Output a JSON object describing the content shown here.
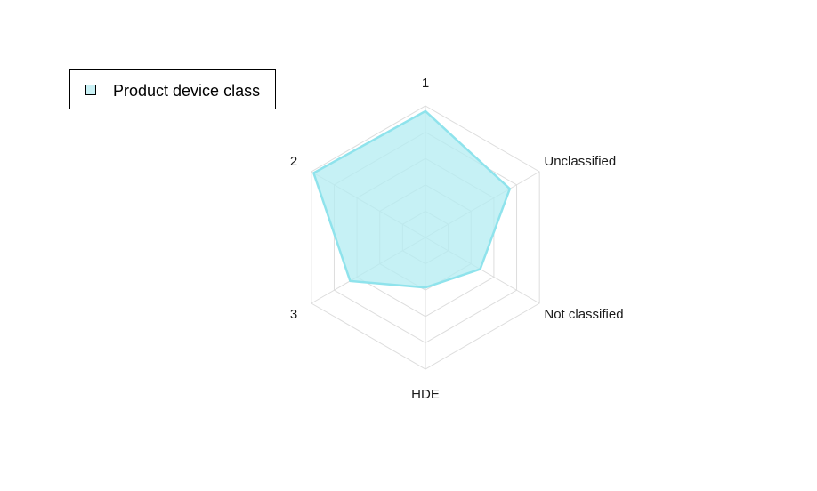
{
  "chart_data": {
    "type": "radar",
    "axes": [
      "1",
      "Unclassified",
      "Not classified",
      "HDE",
      "3",
      "2"
    ],
    "series": [
      {
        "name": "Product device class",
        "values": [
          4.8,
          3.7,
          2.4,
          1.9,
          3.3,
          4.9
        ]
      }
    ],
    "range": [
      0,
      5
    ],
    "rings": 5,
    "grid": true,
    "legend_position": "top-left",
    "colors": {
      "fill": "#b3ecf2",
      "stroke": "#8fe3ec",
      "grid": "#dddddd",
      "legend_swatch": "#c9f1f5"
    }
  }
}
